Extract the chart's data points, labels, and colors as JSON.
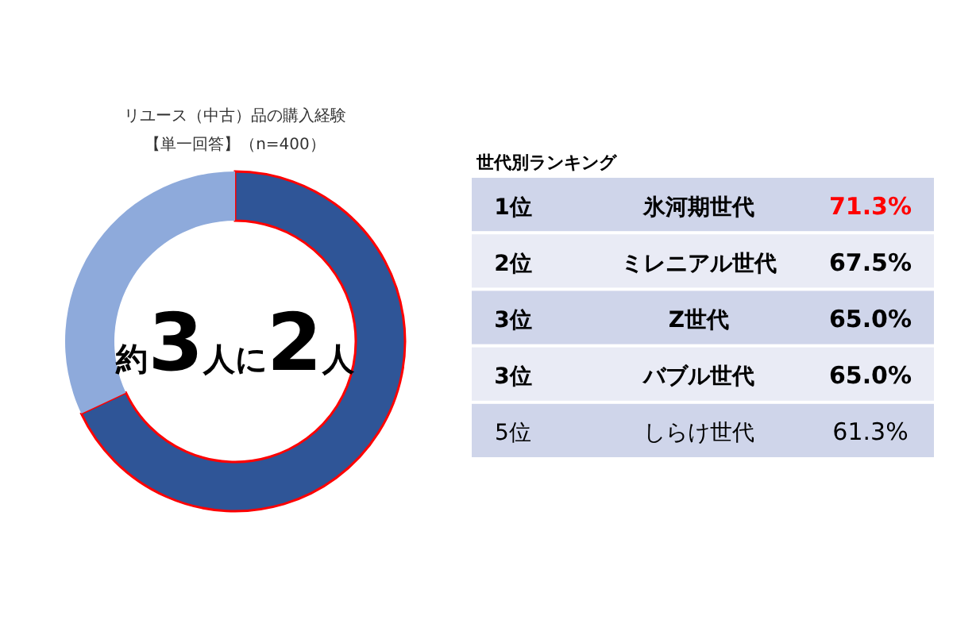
{
  "chart_data": [
    {
      "type": "donut",
      "title": "リユース（中古）品の購入経験",
      "subtitle": "【単一回答】（n=400）",
      "categories": [
        null,
        null
      ],
      "values": [
        68,
        32
      ],
      "colors": [
        "#2f5597",
        "#8eaadb"
      ],
      "annotations": [
        "約3人に2人"
      ]
    },
    {
      "type": "other",
      "title": "世代別ランキング",
      "annotations": [
        "1位",
        "2位",
        "3位",
        "3位",
        "5位"
      ],
      "categories": [
        "氷河期世代",
        "ミレニアル世代",
        "Z世代",
        "バブル世代",
        "しらけ世代"
      ],
      "values": [
        71.3,
        67.5,
        65.0,
        65.0,
        61.3
      ],
      "value_labels": [
        "71.3%",
        "67.5%",
        "65.0%",
        "65.0%",
        "61.3%"
      ],
      "colors": [
        "#cfd5ea",
        "#e9ebf5",
        "#cfd5ea",
        "#e9ebf5",
        "#cfd5ea"
      ]
    }
  ]
}
